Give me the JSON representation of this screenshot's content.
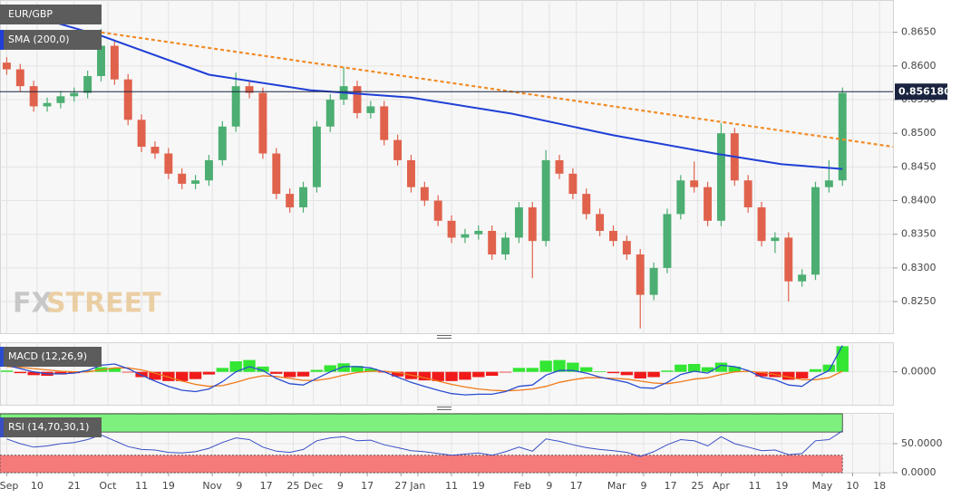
{
  "chart_data": [
    {
      "type": "candlestick",
      "title": "EUR/GBP",
      "watermark": {
        "prefix": "FX",
        "suffix": "STREET"
      },
      "x": [
        0,
        4,
        8,
        12,
        16,
        20,
        24,
        28,
        32,
        36,
        40,
        44,
        48,
        52,
        56,
        60,
        64,
        68,
        72,
        76,
        80,
        84,
        88,
        92,
        96,
        100,
        104,
        108,
        112,
        116,
        120,
        124,
        128,
        132,
        136,
        140,
        144,
        148,
        152,
        156,
        160,
        164,
        168,
        172,
        176,
        180,
        184,
        188,
        192,
        196,
        200,
        204,
        208,
        212,
        216,
        220,
        224,
        228,
        232,
        236,
        240,
        244,
        248
      ],
      "open": [
        0.8605,
        0.8595,
        0.857,
        0.854,
        0.8545,
        0.8555,
        0.856,
        0.8585,
        0.863,
        0.858,
        0.852,
        0.848,
        0.847,
        0.844,
        0.8425,
        0.843,
        0.846,
        0.851,
        0.857,
        0.856,
        0.847,
        0.841,
        0.839,
        0.842,
        0.851,
        0.855,
        0.857,
        0.853,
        0.854,
        0.849,
        0.846,
        0.842,
        0.84,
        0.837,
        0.8345,
        0.835,
        0.8355,
        0.832,
        0.8345,
        0.839,
        0.834,
        0.846,
        0.844,
        0.841,
        0.838,
        0.8355,
        0.834,
        0.832,
        0.826,
        0.83,
        0.838,
        0.843,
        0.842,
        0.837,
        0.85,
        0.843,
        0.839,
        0.834,
        0.8345,
        0.828,
        0.829,
        0.842,
        0.843
      ],
      "high": [
        0.8613,
        0.8603,
        0.8578,
        0.8553,
        0.8563,
        0.8568,
        0.8593,
        0.8655,
        0.8638,
        0.8588,
        0.8528,
        0.8488,
        0.8478,
        0.8448,
        0.8438,
        0.8468,
        0.8518,
        0.859,
        0.8578,
        0.8568,
        0.8478,
        0.8418,
        0.8428,
        0.8518,
        0.8558,
        0.8598,
        0.8578,
        0.8548,
        0.8548,
        0.8498,
        0.8468,
        0.8428,
        0.8408,
        0.8378,
        0.8358,
        0.8363,
        0.8363,
        0.8353,
        0.8398,
        0.8398,
        0.8475,
        0.8468,
        0.8448,
        0.8418,
        0.8388,
        0.8363,
        0.8348,
        0.8328,
        0.8308,
        0.8388,
        0.8438,
        0.8458,
        0.8428,
        0.8515,
        0.8508,
        0.8438,
        0.8398,
        0.8353,
        0.8353,
        0.8298,
        0.8428,
        0.846,
        0.8568
      ],
      "low": [
        0.8587,
        0.8562,
        0.8532,
        0.8532,
        0.8537,
        0.8547,
        0.8552,
        0.8577,
        0.8572,
        0.8512,
        0.8472,
        0.8462,
        0.8432,
        0.8417,
        0.8417,
        0.8422,
        0.8452,
        0.8502,
        0.8552,
        0.8462,
        0.8402,
        0.8382,
        0.8382,
        0.8412,
        0.8502,
        0.8542,
        0.8522,
        0.8522,
        0.8482,
        0.8452,
        0.8412,
        0.8392,
        0.8362,
        0.8337,
        0.8337,
        0.8342,
        0.8312,
        0.8312,
        0.8337,
        0.8285,
        0.8332,
        0.8432,
        0.8402,
        0.8372,
        0.8347,
        0.8332,
        0.8312,
        0.821,
        0.8252,
        0.8292,
        0.8372,
        0.8412,
        0.8362,
        0.8362,
        0.8422,
        0.8382,
        0.8332,
        0.8322,
        0.825,
        0.8272,
        0.8282,
        0.8412,
        0.8422
      ],
      "close": [
        0.8595,
        0.857,
        0.854,
        0.8545,
        0.8555,
        0.856,
        0.8585,
        0.863,
        0.858,
        0.852,
        0.848,
        0.847,
        0.844,
        0.8425,
        0.843,
        0.846,
        0.851,
        0.857,
        0.856,
        0.847,
        0.841,
        0.839,
        0.842,
        0.851,
        0.855,
        0.857,
        0.853,
        0.854,
        0.849,
        0.846,
        0.842,
        0.84,
        0.837,
        0.8345,
        0.835,
        0.8355,
        0.832,
        0.8345,
        0.839,
        0.834,
        0.846,
        0.844,
        0.841,
        0.838,
        0.8355,
        0.834,
        0.832,
        0.826,
        0.83,
        0.838,
        0.843,
        0.842,
        0.837,
        0.85,
        0.843,
        0.839,
        0.834,
        0.8345,
        0.828,
        0.829,
        0.842,
        0.843,
        0.856
      ],
      "up_color": "#4cae72",
      "down_color": "#e0624c",
      "xlim": [
        -2,
        263
      ],
      "ylim": [
        0.8203,
        0.8698
      ],
      "yticks": [
        {
          "value": 0.825,
          "label": "0.8250"
        },
        {
          "value": 0.83,
          "label": "0.8300"
        },
        {
          "value": 0.835,
          "label": "0.8350"
        },
        {
          "value": 0.84,
          "label": "0.8400"
        },
        {
          "value": 0.845,
          "label": "0.8450"
        },
        {
          "value": 0.85,
          "label": "0.8500"
        },
        {
          "value": 0.855,
          "label": "0.8550"
        },
        {
          "value": 0.86,
          "label": "0.8600"
        },
        {
          "value": 0.865,
          "label": "0.8650"
        }
      ],
      "grid": true,
      "sma": {
        "name": "SMA (200,0)",
        "color": "#1f3fd6",
        "x": [
          0,
          28,
          60,
          90,
          120,
          150,
          180,
          210,
          230,
          248
        ],
        "values": [
          0.8685,
          0.8645,
          0.8587,
          0.8564,
          0.8553,
          0.8529,
          0.8497,
          0.847,
          0.8454,
          0.8447
        ]
      },
      "trendline": {
        "color": "#f28c28",
        "x": [
          28,
          263
        ],
        "values": [
          0.865,
          0.848
        ]
      },
      "last_price": {
        "value": 0.85618,
        "label": "0.856180",
        "color": "#1a2440"
      }
    },
    {
      "type": "macd",
      "name": "MACD (12,26,9)",
      "x": [
        0,
        4,
        8,
        12,
        16,
        20,
        24,
        28,
        32,
        36,
        40,
        44,
        48,
        52,
        56,
        60,
        64,
        68,
        72,
        76,
        80,
        84,
        88,
        92,
        96,
        100,
        104,
        108,
        112,
        116,
        120,
        124,
        128,
        132,
        136,
        140,
        144,
        148,
        152,
        156,
        160,
        164,
        168,
        172,
        176,
        180,
        184,
        188,
        192,
        196,
        200,
        204,
        208,
        212,
        216,
        220,
        224,
        228,
        232,
        236,
        240,
        244,
        248
      ],
      "macd": {
        "color": "#2a4dd0",
        "values": [
          0.001,
          0.0005,
          0,
          -0.0003,
          -0.0003,
          -0.0002,
          0.0002,
          0.001,
          0.0012,
          0.0005,
          -0.0005,
          -0.0014,
          -0.0022,
          -0.0028,
          -0.003,
          -0.0026,
          -0.0015,
          0,
          0.0008,
          0.0002,
          -0.001,
          -0.0018,
          -0.002,
          -0.001,
          0,
          0.0008,
          0.0008,
          0.0006,
          0,
          -0.0008,
          -0.0016,
          -0.0022,
          -0.0028,
          -0.0033,
          -0.0035,
          -0.0034,
          -0.0034,
          -0.003,
          -0.0022,
          -0.002,
          -0.0005,
          0.0002,
          0.0002,
          -0.0002,
          -0.0008,
          -0.0012,
          -0.0016,
          -0.0024,
          -0.0025,
          -0.0016,
          -0.0004,
          0.0001,
          -0.0002,
          0.001,
          0.0008,
          0.0002,
          -0.0008,
          -0.0012,
          -0.002,
          -0.0022,
          -0.0008,
          0.0002,
          0.004
        ]
      },
      "signal": {
        "color": "#f07a1a",
        "values": [
          0.0008,
          0.0007,
          0.0005,
          0.0003,
          0.0001,
          0,
          0,
          0.0003,
          0.0006,
          0.0006,
          0.0003,
          -0.0002,
          -0.0008,
          -0.0014,
          -0.0019,
          -0.0022,
          -0.0021,
          -0.0016,
          -0.001,
          -0.0006,
          -0.0007,
          -0.001,
          -0.0013,
          -0.0013,
          -0.001,
          -0.0005,
          -0.0001,
          0.0001,
          0.0001,
          -0.0001,
          -0.0005,
          -0.0009,
          -0.0014,
          -0.0019,
          -0.0023,
          -0.0026,
          -0.0028,
          -0.0029,
          -0.0028,
          -0.0026,
          -0.0022,
          -0.0016,
          -0.0012,
          -0.0009,
          -0.0009,
          -0.001,
          -0.0011,
          -0.0014,
          -0.0017,
          -0.0018,
          -0.0015,
          -0.0011,
          -0.0009,
          -0.0004,
          0,
          0.0001,
          -0.0001,
          -0.0004,
          -0.0008,
          -0.0012,
          -0.0012,
          -0.0009,
          0.0001
        ]
      },
      "histogram": {
        "up_color": "#33e633",
        "down_color": "#f01a1a",
        "values": [
          0.0002,
          -0.0002,
          -0.0005,
          -0.0006,
          -0.0004,
          -0.0002,
          0.0002,
          0.0007,
          0.0006,
          -0.0001,
          -0.0008,
          -0.0012,
          -0.0014,
          -0.0014,
          -0.0011,
          -0.0004,
          0.0006,
          0.0016,
          0.0018,
          0.0008,
          -0.0003,
          -0.0008,
          -0.0007,
          0.0003,
          0.001,
          0.0013,
          0.0009,
          0.0005,
          -0.0001,
          -0.0007,
          -0.0011,
          -0.0013,
          -0.0014,
          -0.0014,
          -0.0012,
          -0.0008,
          -0.0006,
          -0.0001,
          0.0006,
          0.0006,
          0.0017,
          0.0018,
          0.0014,
          0.0007,
          0.0001,
          -0.0002,
          -0.0005,
          -0.001,
          -0.0008,
          0.0002,
          0.0011,
          0.0012,
          0.0007,
          0.0014,
          0.0008,
          0.0001,
          -0.0007,
          -0.0008,
          -0.0012,
          -0.001,
          0.0004,
          0.0011,
          0.0039
        ]
      },
      "xlim": [
        -2,
        263
      ],
      "ylim": [
        -0.005,
        0.0045
      ],
      "yticks": [
        {
          "value": 0,
          "label": "0.0000"
        }
      ],
      "grid": true
    },
    {
      "type": "rsi",
      "name": "RSI (14,70,30,1)",
      "x": [
        0,
        4,
        8,
        12,
        16,
        20,
        24,
        28,
        32,
        36,
        40,
        44,
        48,
        52,
        56,
        60,
        64,
        68,
        72,
        76,
        80,
        84,
        88,
        92,
        96,
        100,
        104,
        108,
        112,
        116,
        120,
        124,
        128,
        132,
        136,
        140,
        144,
        148,
        152,
        156,
        160,
        164,
        168,
        172,
        176,
        180,
        184,
        188,
        192,
        196,
        200,
        204,
        208,
        212,
        216,
        220,
        224,
        228,
        232,
        236,
        240,
        244,
        248
      ],
      "values": [
        58,
        50,
        44,
        46,
        50,
        52,
        57,
        65,
        55,
        45,
        40,
        39,
        35,
        34,
        36,
        42,
        52,
        60,
        57,
        44,
        37,
        35,
        40,
        55,
        60,
        62,
        55,
        56,
        48,
        43,
        38,
        36,
        33,
        30,
        32,
        34,
        30,
        36,
        44,
        37,
        58,
        54,
        48,
        43,
        40,
        38,
        35,
        28,
        36,
        48,
        57,
        55,
        46,
        62,
        50,
        44,
        38,
        39,
        31,
        33,
        55,
        57,
        72
      ],
      "color": "#3a4fc4",
      "overbought": 70,
      "oversold": 30,
      "overbought_color": "#7df07d",
      "oversold_color": "#f57a7a",
      "xlim": [
        -2,
        263
      ],
      "ylim": [
        0,
        103
      ],
      "yticks": [
        {
          "value": 0,
          "label": "0.0000"
        },
        {
          "value": 50,
          "label": "50.0000"
        }
      ],
      "grid": true,
      "xticks": [
        {
          "value": 0,
          "label": "Sep"
        },
        {
          "value": 9,
          "label": "10"
        },
        {
          "value": 20,
          "label": "21"
        },
        {
          "value": 30,
          "label": "Oct"
        },
        {
          "value": 40,
          "label": "11"
        },
        {
          "value": 48,
          "label": "19"
        },
        {
          "value": 61,
          "label": "Nov"
        },
        {
          "value": 69,
          "label": "9"
        },
        {
          "value": 77,
          "label": "17"
        },
        {
          "value": 85,
          "label": "25"
        },
        {
          "value": 91,
          "label": "Dec"
        },
        {
          "value": 99,
          "label": "9"
        },
        {
          "value": 107,
          "label": "17"
        },
        {
          "value": 117,
          "label": "27"
        },
        {
          "value": 122,
          "label": "Jan"
        },
        {
          "value": 132,
          "label": "11"
        },
        {
          "value": 140,
          "label": "19"
        },
        {
          "value": 153,
          "label": "Feb"
        },
        {
          "value": 161,
          "label": "9"
        },
        {
          "value": 169,
          "label": "17"
        },
        {
          "value": 181,
          "label": "Mar"
        },
        {
          "value": 189,
          "label": "9"
        },
        {
          "value": 197,
          "label": "17"
        },
        {
          "value": 205,
          "label": "25"
        },
        {
          "value": 212,
          "label": "Apr"
        },
        {
          "value": 222,
          "label": "11"
        },
        {
          "value": 230,
          "label": "19"
        },
        {
          "value": 242,
          "label": "May"
        },
        {
          "value": 251,
          "label": "10"
        },
        {
          "value": 259,
          "label": "18"
        }
      ]
    }
  ]
}
